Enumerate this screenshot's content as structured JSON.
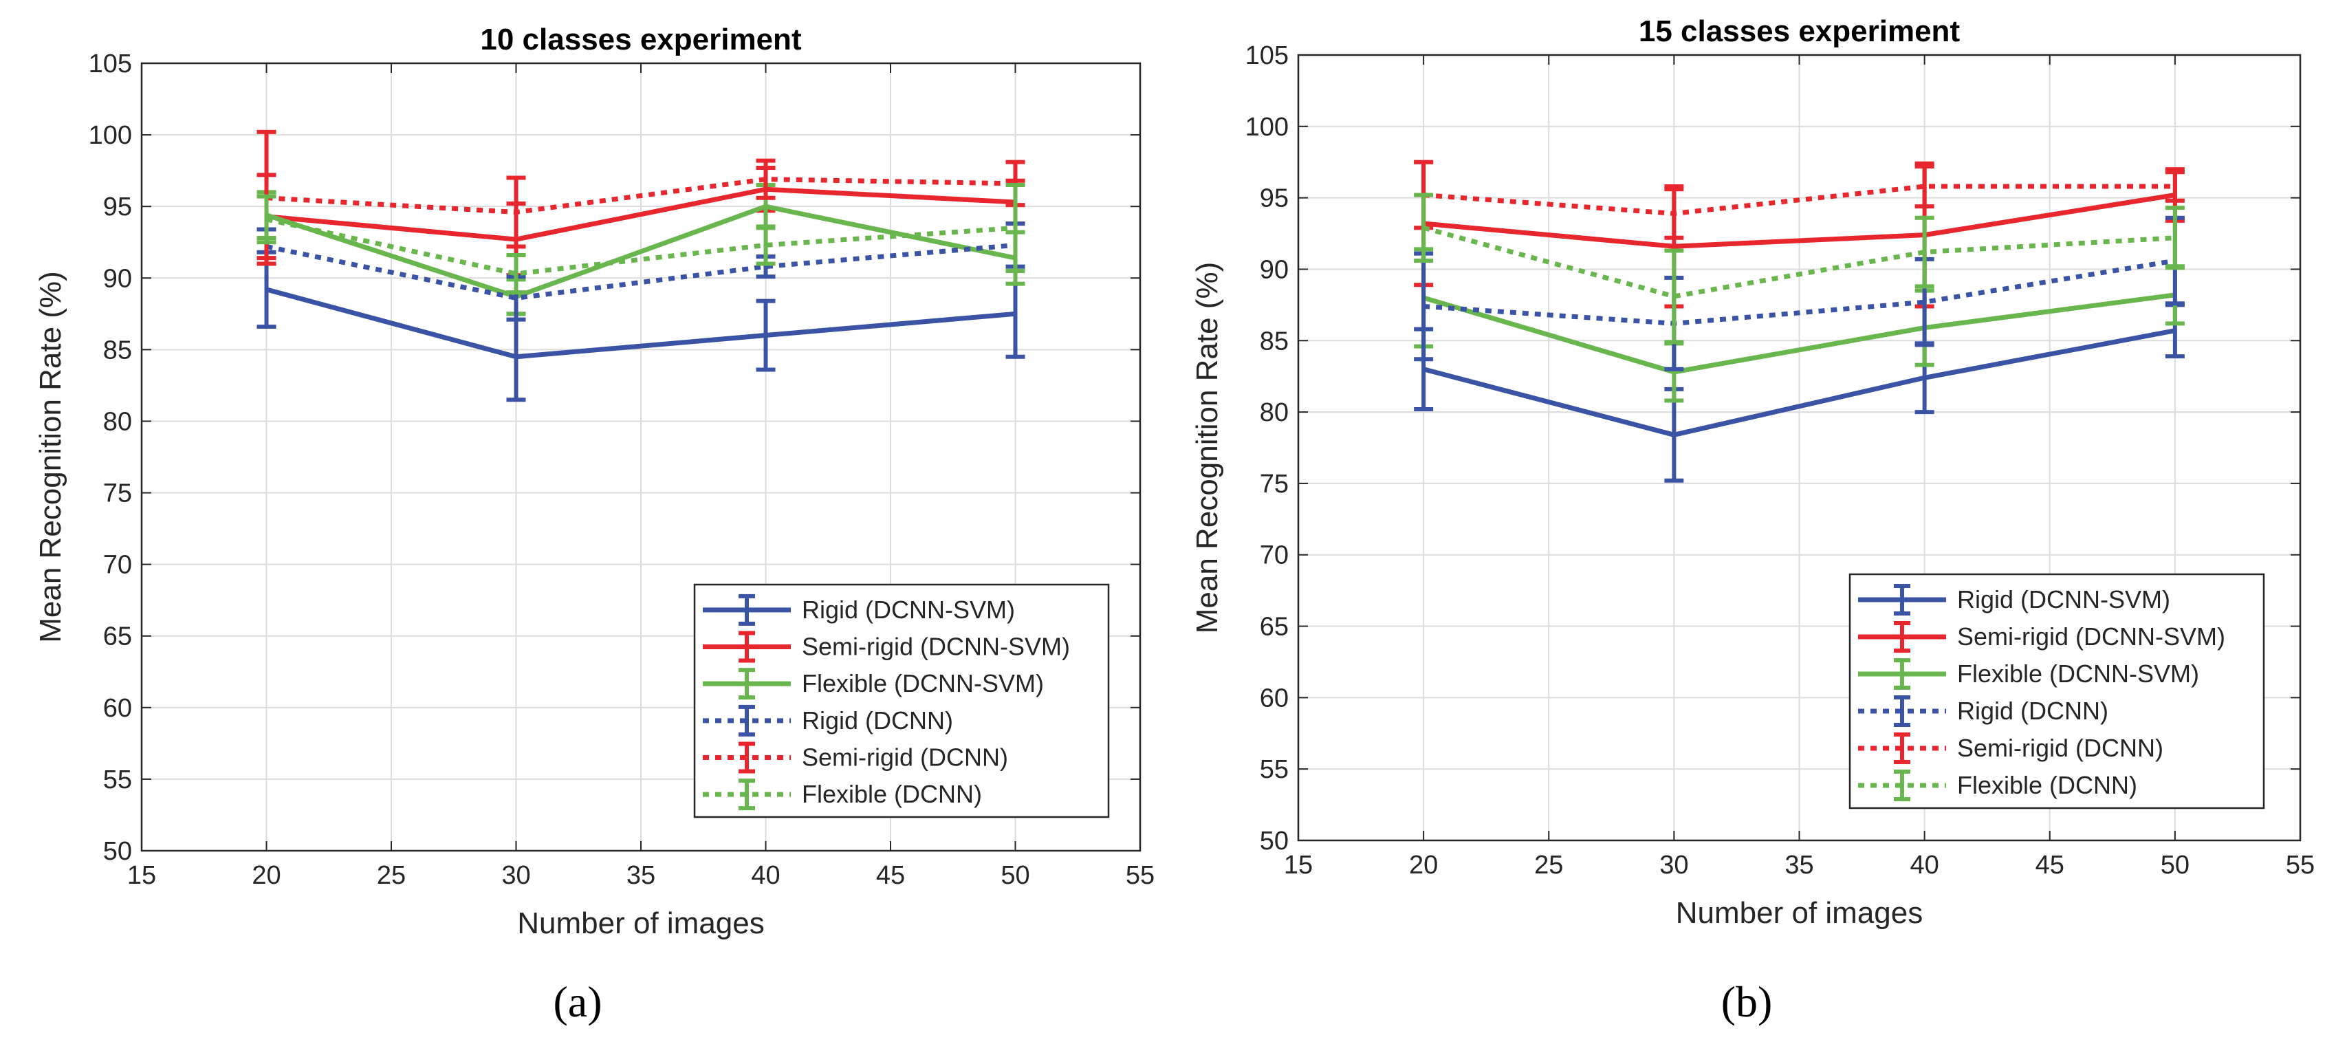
{
  "chart_data": [
    {
      "type": "line",
      "title": "10 classes experiment",
      "xlabel": "Number of images",
      "ylabel": "Mean Recognition Rate (%)",
      "caption": "(a)",
      "xlim": [
        15,
        55
      ],
      "ylim": [
        50,
        105
      ],
      "xticks": [
        15,
        20,
        25,
        30,
        35,
        40,
        45,
        50,
        55
      ],
      "yticks": [
        50,
        55,
        60,
        65,
        70,
        75,
        80,
        85,
        90,
        95,
        100,
        105
      ],
      "grid": true,
      "legend_position": "bottom-right",
      "x": [
        20,
        30,
        40,
        50
      ],
      "series": [
        {
          "name": "Rigid (DCNN-SVM)",
          "color": "#3b53a4",
          "style": "solid",
          "values": [
            89.2,
            84.5,
            86.0,
            87.5
          ],
          "errors": [
            2.6,
            3.0,
            2.4,
            3.0
          ]
        },
        {
          "name": "Semi-rigid (DCNN-SVM)",
          "color": "#e8262d",
          "style": "solid",
          "values": [
            94.3,
            92.7,
            96.2,
            95.3
          ],
          "errors": [
            2.9,
            2.5,
            1.5,
            1.5
          ]
        },
        {
          "name": "Flexible (DCNN-SVM)",
          "color": "#6ab64e",
          "style": "solid",
          "values": [
            94.4,
            88.7,
            95.0,
            91.4
          ],
          "errors": [
            1.6,
            1.2,
            1.5,
            1.8
          ]
        },
        {
          "name": "Rigid (DCNN)",
          "color": "#3b53a4",
          "style": "dotted",
          "values": [
            92.2,
            88.6,
            90.8,
            92.3
          ],
          "errors": [
            1.2,
            1.5,
            0.7,
            1.5
          ]
        },
        {
          "name": "Semi-rigid (DCNN)",
          "color": "#e8262d",
          "style": "dotted",
          "values": [
            95.6,
            94.6,
            96.9,
            96.6
          ],
          "errors": [
            4.6,
            2.4,
            1.3,
            1.5
          ]
        },
        {
          "name": "Flexible (DCNN)",
          "color": "#6ab64e",
          "style": "dotted",
          "values": [
            94.1,
            90.3,
            92.3,
            93.5
          ],
          "errors": [
            1.6,
            1.3,
            1.3,
            3.0
          ]
        }
      ]
    },
    {
      "type": "line",
      "title": "15 classes experiment",
      "xlabel": "Number of images",
      "ylabel": "Mean Recognition Rate (%)",
      "caption": "(b)",
      "xlim": [
        15,
        55
      ],
      "ylim": [
        50,
        105
      ],
      "xticks": [
        15,
        20,
        25,
        30,
        35,
        40,
        45,
        50,
        55
      ],
      "yticks": [
        50,
        55,
        60,
        65,
        70,
        75,
        80,
        85,
        90,
        95,
        100,
        105
      ],
      "grid": true,
      "legend_position": "bottom-right",
      "x": [
        20,
        30,
        40,
        50
      ],
      "series": [
        {
          "name": "Rigid (DCNN-SVM)",
          "color": "#3b53a4",
          "style": "solid",
          "values": [
            83.0,
            78.4,
            82.4,
            85.7
          ],
          "errors": [
            2.8,
            3.2,
            2.4,
            1.8
          ]
        },
        {
          "name": "Semi-rigid (DCNN-SVM)",
          "color": "#e8262d",
          "style": "solid",
          "values": [
            93.2,
            91.6,
            92.4,
            95.2
          ],
          "errors": [
            4.3,
            4.2,
            5.0,
            1.8
          ]
        },
        {
          "name": "Flexible (DCNN-SVM)",
          "color": "#6ab64e",
          "style": "solid",
          "values": [
            88.0,
            82.8,
            85.9,
            88.2
          ],
          "errors": [
            3.4,
            2.0,
            2.6,
            2.0
          ]
        },
        {
          "name": "Rigid (DCNN)",
          "color": "#3b53a4",
          "style": "dotted",
          "values": [
            87.4,
            86.2,
            87.7,
            90.6
          ],
          "errors": [
            3.7,
            3.2,
            3.0,
            3.0
          ]
        },
        {
          "name": "Semi-rigid (DCNN)",
          "color": "#e8262d",
          "style": "dotted",
          "values": [
            95.2,
            93.9,
            95.8,
            95.8
          ],
          "errors": [
            2.3,
            1.7,
            1.4,
            1.0
          ]
        },
        {
          "name": "Flexible (DCNN)",
          "color": "#6ab64e",
          "style": "dotted",
          "values": [
            92.9,
            88.1,
            91.2,
            92.2
          ],
          "errors": [
            2.3,
            3.2,
            2.4,
            2.1
          ]
        }
      ]
    }
  ]
}
